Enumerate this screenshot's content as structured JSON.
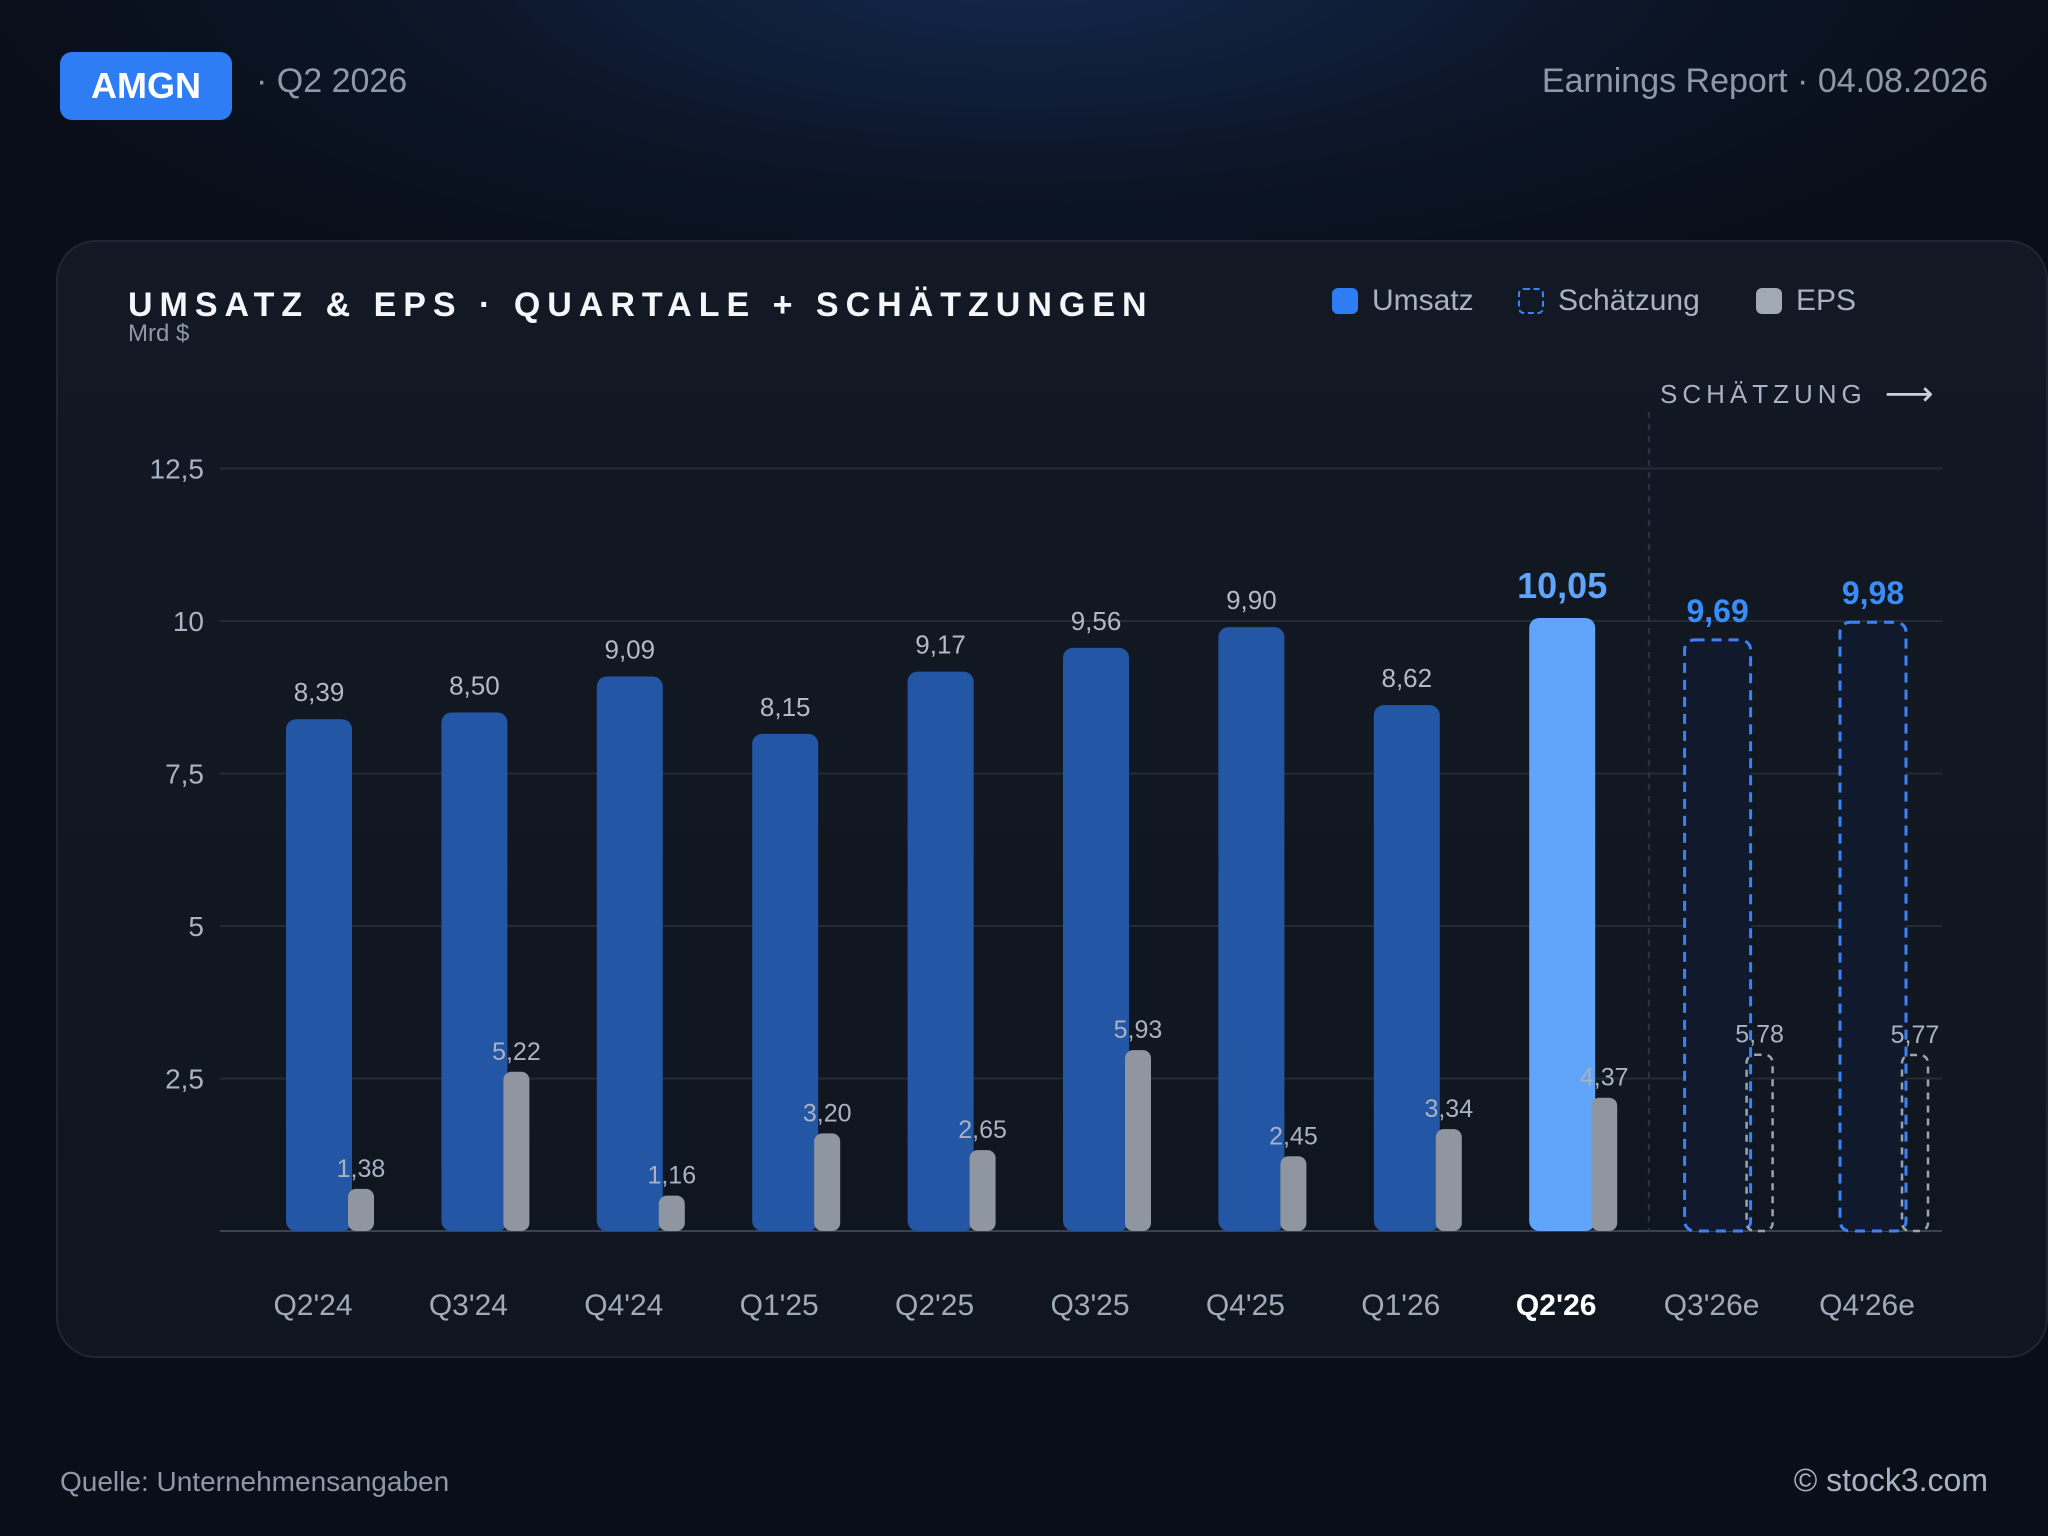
{
  "header": {
    "ticker": "AMGN",
    "period": "· Q2 2026",
    "report": "Earnings Report · 04.08.2026"
  },
  "legend": {
    "revenue": "Umsatz",
    "estimate": "Schätzung",
    "eps": "EPS"
  },
  "estimate_marker": "SCHÄTZUNG",
  "footer": {
    "source": "Quelle: Unternehmensangaben",
    "brand": "© stock3.com"
  },
  "colors": {
    "revenue": "#2456a6",
    "current": "#60a5fa",
    "estimate_border": "#3b82f6",
    "estimate_fill": "#111a2c",
    "estimate_label": "#3b8cf7",
    "eps": "#8f96a0",
    "eps_estimate_border": "#9ca3af",
    "accent": "#2f7df5"
  },
  "chart_data": {
    "type": "bar",
    "title": "UMSATZ & EPS · QUARTALE + SCHÄTZUNGEN",
    "ylabel": "Mrd $",
    "ylim": [
      0,
      12.5
    ],
    "yticks": [
      "2,5",
      "5",
      "7,5",
      "10",
      "12,5"
    ],
    "ytick_values": [
      2.5,
      5,
      7.5,
      10,
      12.5
    ],
    "grid": true,
    "legend_position": "top-right",
    "categories": [
      "Q2'24",
      "Q3'24",
      "Q4'24",
      "Q1'25",
      "Q2'25",
      "Q3'25",
      "Q4'25",
      "Q1'26",
      "Q2'26",
      "Q3'26e",
      "Q4'26e"
    ],
    "current_index": 8,
    "estimate_from_index": 9,
    "series": [
      {
        "name": "Umsatz",
        "values": [
          8.39,
          8.5,
          9.09,
          8.15,
          9.17,
          9.56,
          9.9,
          8.62,
          10.05,
          9.69,
          9.98
        ],
        "labels": [
          "8,39",
          "8,50",
          "9,09",
          "8,15",
          "9,17",
          "9,56",
          "9,90",
          "8,62",
          "10,05",
          "9,69",
          "9,98"
        ]
      },
      {
        "name": "EPS",
        "values": [
          1.38,
          5.22,
          1.16,
          3.2,
          2.65,
          5.93,
          2.45,
          3.34,
          4.37,
          5.78,
          5.77
        ],
        "labels": [
          "1,38",
          "5,22",
          "1,16",
          "3,20",
          "2,65",
          "5,93",
          "2,45",
          "3,34",
          "4,37",
          "5,78",
          "5,77"
        ]
      }
    ]
  }
}
